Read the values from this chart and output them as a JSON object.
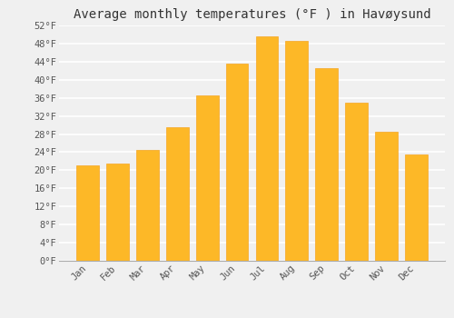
{
  "title": "Average monthly temperatures (°F ) in Havøysund",
  "months": [
    "Jan",
    "Feb",
    "Mar",
    "Apr",
    "May",
    "Jun",
    "Jul",
    "Aug",
    "Sep",
    "Oct",
    "Nov",
    "Dec"
  ],
  "values": [
    21,
    21.5,
    24.5,
    29.5,
    36.5,
    43.5,
    49.5,
    48.5,
    42.5,
    35,
    28.5,
    23.5
  ],
  "bar_color": "#FDB827",
  "bar_edge_color": "#F5A623",
  "ylim": [
    0,
    52
  ],
  "yticks": [
    0,
    4,
    8,
    12,
    16,
    20,
    24,
    28,
    32,
    36,
    40,
    44,
    48,
    52
  ],
  "ytick_labels": [
    "0°F",
    "4°F",
    "8°F",
    "12°F",
    "16°F",
    "20°F",
    "24°F",
    "28°F",
    "32°F",
    "36°F",
    "40°F",
    "44°F",
    "48°F",
    "52°F"
  ],
  "background_color": "#f0f0f0",
  "grid_color": "#ffffff",
  "title_fontsize": 10,
  "tick_fontsize": 7.5,
  "font_family": "monospace"
}
